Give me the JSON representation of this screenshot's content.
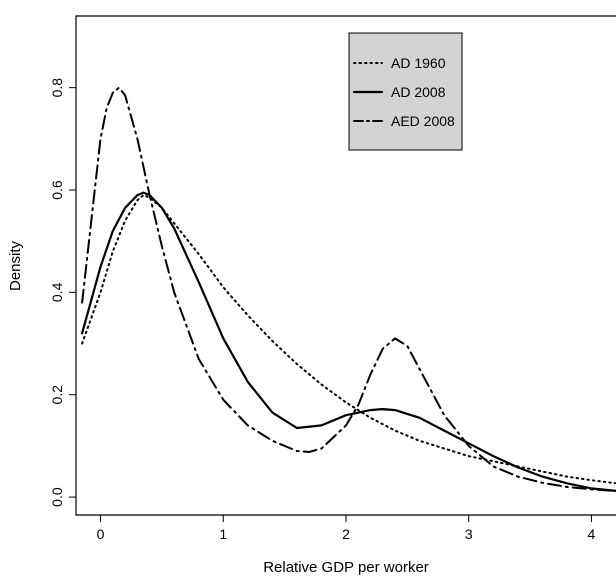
{
  "chart_data": {
    "type": "line",
    "title": "",
    "xlabel": "Relative GDP per worker",
    "ylabel": "Density",
    "xlim": [
      -0.2,
      4.2
    ],
    "ylim": [
      -0.035,
      0.94
    ],
    "x_ticks": [
      0,
      1,
      2,
      3,
      4
    ],
    "y_ticks": [
      0.0,
      0.2,
      0.4,
      0.6,
      0.8
    ],
    "x_tick_labels": [
      "0",
      "1",
      "2",
      "3",
      "4"
    ],
    "y_tick_labels": [
      "0.0",
      "0.2",
      "0.4",
      "0.6",
      "0.8"
    ],
    "grid": false,
    "legend_position": "top-right",
    "legend_background": "#d3d3d3",
    "series": [
      {
        "name": "AD 1960",
        "style": "dotted",
        "color": "#000000",
        "x": [
          -0.15,
          0.0,
          0.1,
          0.2,
          0.3,
          0.35,
          0.4,
          0.5,
          0.6,
          0.8,
          1.0,
          1.2,
          1.4,
          1.6,
          1.8,
          2.0,
          2.2,
          2.4,
          2.6,
          2.8,
          3.0,
          3.2,
          3.4,
          3.6,
          3.8,
          4.0,
          4.2
        ],
        "y": [
          0.3,
          0.4,
          0.48,
          0.54,
          0.58,
          0.59,
          0.585,
          0.565,
          0.535,
          0.475,
          0.41,
          0.355,
          0.305,
          0.26,
          0.22,
          0.185,
          0.155,
          0.13,
          0.11,
          0.095,
          0.08,
          0.07,
          0.06,
          0.05,
          0.04,
          0.033,
          0.027
        ]
      },
      {
        "name": "AD 2008",
        "style": "solid",
        "color": "#000000",
        "x": [
          -0.15,
          0.0,
          0.1,
          0.2,
          0.3,
          0.35,
          0.4,
          0.5,
          0.6,
          0.8,
          1.0,
          1.2,
          1.4,
          1.6,
          1.8,
          2.0,
          2.2,
          2.3,
          2.4,
          2.6,
          2.8,
          3.0,
          3.2,
          3.4,
          3.6,
          3.8,
          4.0,
          4.2
        ],
        "y": [
          0.32,
          0.45,
          0.52,
          0.565,
          0.59,
          0.595,
          0.59,
          0.565,
          0.525,
          0.42,
          0.31,
          0.225,
          0.165,
          0.135,
          0.14,
          0.16,
          0.17,
          0.172,
          0.17,
          0.155,
          0.13,
          0.105,
          0.08,
          0.058,
          0.04,
          0.027,
          0.017,
          0.012
        ]
      },
      {
        "name": "AED 2008",
        "style": "dashdot",
        "color": "#000000",
        "x": [
          -0.15,
          0.0,
          0.05,
          0.1,
          0.15,
          0.2,
          0.3,
          0.4,
          0.5,
          0.6,
          0.8,
          1.0,
          1.2,
          1.4,
          1.6,
          1.7,
          1.8,
          2.0,
          2.1,
          2.2,
          2.3,
          2.4,
          2.5,
          2.6,
          2.8,
          3.0,
          3.2,
          3.4,
          3.6,
          3.8,
          4.0,
          4.2
        ],
        "y": [
          0.38,
          0.7,
          0.76,
          0.79,
          0.8,
          0.785,
          0.7,
          0.59,
          0.49,
          0.4,
          0.27,
          0.19,
          0.14,
          0.11,
          0.09,
          0.088,
          0.095,
          0.14,
          0.18,
          0.24,
          0.29,
          0.31,
          0.295,
          0.25,
          0.16,
          0.1,
          0.06,
          0.04,
          0.028,
          0.02,
          0.015,
          0.012
        ]
      }
    ]
  }
}
